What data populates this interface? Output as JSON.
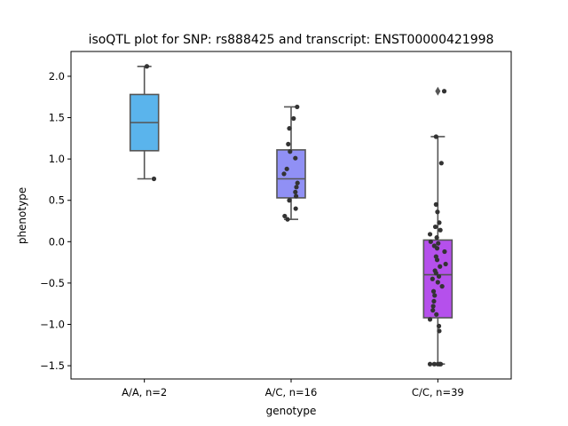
{
  "chart_data": {
    "type": "box",
    "title": "isoQTL plot for SNP: rs888425 and transcript: ENST00000421998",
    "xlabel": "genotype",
    "ylabel": "phenotype",
    "ylim": [
      -1.66,
      2.3
    ],
    "yticks": [
      -1.5,
      -1.0,
      -0.5,
      0.0,
      0.5,
      1.0,
      1.5,
      2.0
    ],
    "ytick_labels": [
      "−1.5",
      "−1.0",
      "−0.5",
      "0.0",
      "0.5",
      "1.0",
      "1.5",
      "2.0"
    ],
    "categories": [
      "A/A, n=2",
      "A/C, n=16",
      "C/C, n=39"
    ],
    "colors": [
      "#5ab4ec",
      "#9090f5",
      "#b550ec"
    ],
    "boxes": [
      {
        "q1": 1.1,
        "median": 1.44,
        "q3": 1.78,
        "whisker_low": 0.76,
        "whisker_high": 2.12,
        "outliers": []
      },
      {
        "q1": 0.53,
        "median": 0.76,
        "q3": 1.11,
        "whisker_low": 0.27,
        "whisker_high": 1.63,
        "outliers": []
      },
      {
        "q1": -0.92,
        "median": -0.4,
        "q3": 0.02,
        "whisker_low": -1.48,
        "whisker_high": 1.27,
        "outliers": [
          1.82
        ]
      }
    ],
    "points": [
      [
        {
          "dx": 0.07,
          "y": 2.12
        },
        {
          "dx": 0.27,
          "y": 0.76
        }
      ],
      [
        {
          "dx": 0.17,
          "y": 1.63
        },
        {
          "dx": 0.07,
          "y": 1.49
        },
        {
          "dx": -0.05,
          "y": 1.37
        },
        {
          "dx": -0.08,
          "y": 1.18
        },
        {
          "dx": -0.03,
          "y": 1.09
        },
        {
          "dx": 0.12,
          "y": 1.01
        },
        {
          "dx": -0.12,
          "y": 0.88
        },
        {
          "dx": -0.2,
          "y": 0.82
        },
        {
          "dx": 0.18,
          "y": 0.71
        },
        {
          "dx": 0.15,
          "y": 0.66
        },
        {
          "dx": 0.12,
          "y": 0.6
        },
        {
          "dx": 0.14,
          "y": 0.55
        },
        {
          "dx": -0.05,
          "y": 0.5
        },
        {
          "dx": 0.13,
          "y": 0.4
        },
        {
          "dx": -0.18,
          "y": 0.31
        },
        {
          "dx": -0.1,
          "y": 0.27
        }
      ],
      [
        {
          "dx": 0.18,
          "y": 1.82
        },
        {
          "dx": -0.05,
          "y": 1.27
        },
        {
          "dx": 0.1,
          "y": 0.95
        },
        {
          "dx": -0.05,
          "y": 0.45
        },
        {
          "dx": -0.01,
          "y": 0.36
        },
        {
          "dx": 0.04,
          "y": 0.23
        },
        {
          "dx": -0.07,
          "y": 0.18
        },
        {
          "dx": 0.07,
          "y": 0.14
        },
        {
          "dx": -0.22,
          "y": 0.09
        },
        {
          "dx": -0.03,
          "y": 0.05
        },
        {
          "dx": -0.2,
          "y": 0.0
        },
        {
          "dx": 0.01,
          "y": -0.02
        },
        {
          "dx": -0.1,
          "y": -0.05
        },
        {
          "dx": -0.02,
          "y": -0.08
        },
        {
          "dx": 0.19,
          "y": -0.12
        },
        {
          "dx": -0.05,
          "y": -0.18
        },
        {
          "dx": -0.02,
          "y": -0.22
        },
        {
          "dx": 0.22,
          "y": -0.27
        },
        {
          "dx": 0.06,
          "y": -0.3
        },
        {
          "dx": -0.08,
          "y": -0.35
        },
        {
          "dx": -0.05,
          "y": -0.38
        },
        {
          "dx": 0.03,
          "y": -0.42
        },
        {
          "dx": -0.15,
          "y": -0.45
        },
        {
          "dx": 0.0,
          "y": -0.49
        },
        {
          "dx": 0.12,
          "y": -0.54
        },
        {
          "dx": -0.12,
          "y": -0.6
        },
        {
          "dx": -0.09,
          "y": -0.65
        },
        {
          "dx": -0.11,
          "y": -0.72
        },
        {
          "dx": -0.13,
          "y": -0.78
        },
        {
          "dx": -0.14,
          "y": -0.83
        },
        {
          "dx": -0.04,
          "y": -0.88
        },
        {
          "dx": -0.22,
          "y": -0.94
        },
        {
          "dx": 0.03,
          "y": -1.02
        },
        {
          "dx": 0.04,
          "y": -1.08
        },
        {
          "dx": -0.22,
          "y": -1.48
        },
        {
          "dx": -0.1,
          "y": -1.48
        },
        {
          "dx": 0.0,
          "y": -1.48
        },
        {
          "dx": 0.05,
          "y": -1.48
        },
        {
          "dx": 0.08,
          "y": -1.48
        }
      ]
    ],
    "grid": false,
    "legend": "none"
  }
}
